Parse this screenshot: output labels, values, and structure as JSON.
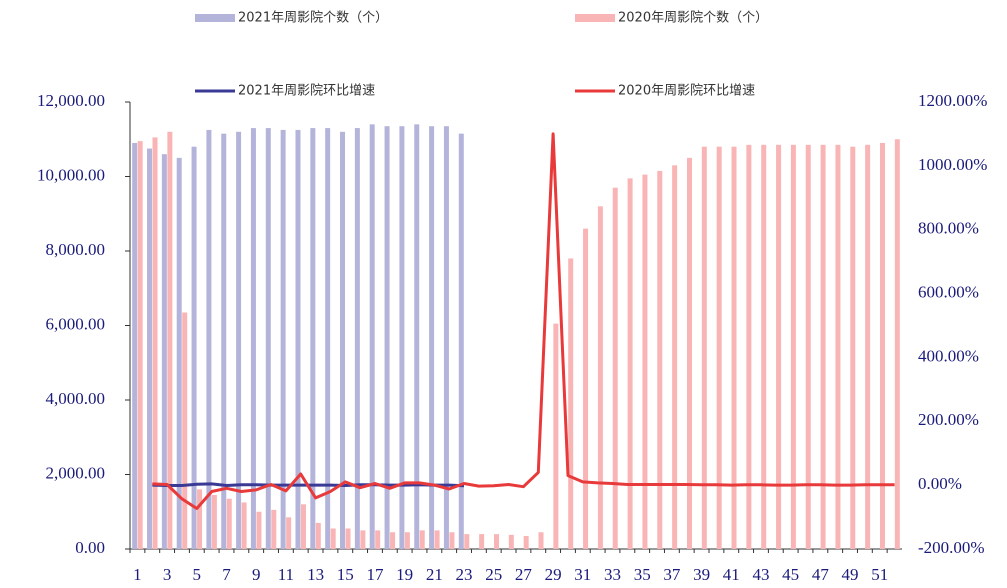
{
  "chart_data": {
    "type": "bar",
    "categories": [
      1,
      null,
      3,
      null,
      5,
      null,
      7,
      null,
      9,
      null,
      11,
      null,
      13,
      null,
      15,
      null,
      17,
      null,
      19,
      null,
      21,
      null,
      23,
      null,
      25,
      null,
      27,
      null,
      29,
      null,
      31,
      null,
      33,
      null,
      35,
      null,
      37,
      null,
      39,
      null,
      41,
      null,
      43,
      null,
      45,
      null,
      47,
      null,
      49,
      null,
      51,
      null
    ],
    "series": [
      {
        "name": "2021年周影院个数（个）",
        "type": "bar",
        "color": "#b4b4da",
        "values": [
          10900,
          10750,
          10600,
          10500,
          10800,
          11250,
          11150,
          11200,
          11300,
          11300,
          11250,
          11250,
          11300,
          11300,
          11200,
          11300,
          11400,
          11350,
          11350,
          11400,
          11350,
          11350,
          11150,
          null,
          null,
          null,
          null,
          null,
          null,
          null,
          null,
          null,
          null,
          null,
          null,
          null,
          null,
          null,
          null,
          null,
          null,
          null,
          null,
          null,
          null,
          null,
          null,
          null,
          null,
          null,
          null,
          null
        ]
      },
      {
        "name": "2020年周影院个数（个）",
        "type": "bar",
        "color": "#f9b5b5",
        "values": [
          10950,
          11050,
          11200,
          6350,
          1600,
          1450,
          1350,
          1250,
          1000,
          1050,
          850,
          1200,
          700,
          550,
          550,
          500,
          500,
          450,
          450,
          500,
          500,
          450,
          400,
          400,
          400,
          380,
          350,
          450,
          6050,
          7800,
          8600,
          9200,
          9700,
          9950,
          10050,
          10150,
          10300,
          10500,
          10800,
          10800,
          10800,
          10850,
          10850,
          10850,
          10850,
          10850,
          10850,
          10850,
          10800,
          10850,
          10900,
          11000
        ]
      },
      {
        "name": "2021年周影院环比增速",
        "type": "line",
        "axis": "y2",
        "color": "#3a3a96",
        "values": [
          null,
          0,
          -1,
          -1,
          3,
          4,
          -1,
          1,
          1,
          0,
          0,
          0,
          0,
          0,
          -1,
          1,
          1,
          0,
          0,
          1,
          0,
          0,
          -2,
          null,
          null,
          null,
          null,
          null,
          null,
          null,
          null,
          null,
          null,
          null,
          null,
          null,
          null,
          null,
          null,
          null,
          null,
          null,
          null,
          null,
          null,
          null,
          null,
          null,
          null,
          null,
          null,
          null
        ]
      },
      {
        "name": "2020年周影院环比增速",
        "type": "line",
        "axis": "y2",
        "color": "#e83a3a",
        "values": [
          null,
          4,
          2,
          -43,
          -73,
          -20,
          -10,
          -20,
          -15,
          2,
          -18,
          35,
          -40,
          -20,
          10,
          -8,
          5,
          -10,
          7,
          7,
          0,
          -12,
          5,
          -3,
          -2,
          2,
          -5,
          40,
          1100,
          30,
          10,
          7,
          5,
          2,
          2,
          2,
          2,
          2,
          1,
          1,
          0,
          1,
          1,
          0,
          0,
          1,
          1,
          0,
          0,
          1,
          1,
          1
        ]
      }
    ],
    "ylim": [
      0,
      12000
    ],
    "yticks": [
      {
        "value": 0,
        "label": "0.00"
      },
      {
        "value": 2000,
        "label": "2,000.00"
      },
      {
        "value": 4000,
        "label": "4,000.00"
      },
      {
        "value": 6000,
        "label": "6,000.00"
      },
      {
        "value": 8000,
        "label": "8,000.00"
      },
      {
        "value": 10000,
        "label": "10,000.00"
      },
      {
        "value": 12000,
        "label": "12,000.00"
      }
    ],
    "y2lim": [
      -200,
      1200
    ],
    "y2ticks": [
      {
        "value": -200,
        "label": "-200.00%"
      },
      {
        "value": 0,
        "label": "0.00%"
      },
      {
        "value": 200,
        "label": "200.00%"
      },
      {
        "value": 400,
        "label": "400.00%"
      },
      {
        "value": 600,
        "label": "600.00%"
      },
      {
        "value": 800,
        "label": "800.00%"
      },
      {
        "value": 1000,
        "label": "1000.00%"
      },
      {
        "value": 1200,
        "label": "1200.00%"
      }
    ],
    "grid": false
  }
}
